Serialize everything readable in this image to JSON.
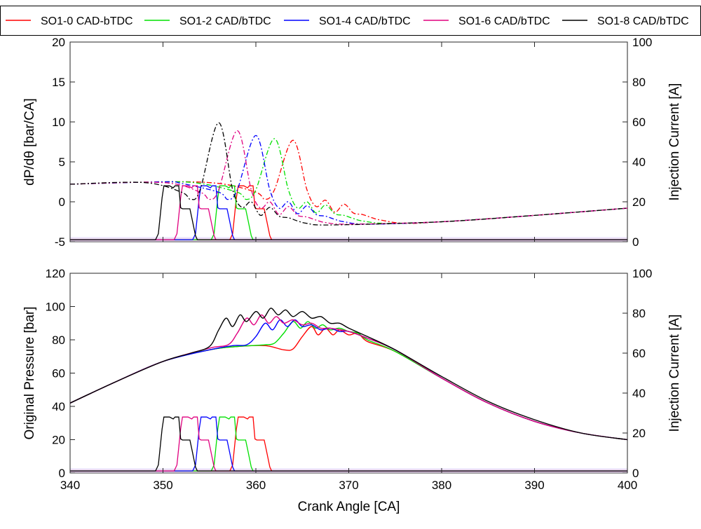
{
  "legend": {
    "items": [
      {
        "label": "SO1-0 CAD-bTDC",
        "color": "#ff0000"
      },
      {
        "label": "SO1-2 CAD/bTDC",
        "color": "#00e000"
      },
      {
        "label": "SO1-4 CAD/bTDC",
        "color": "#0000ff"
      },
      {
        "label": "SO1-6 CAD/bTDC",
        "color": "#e0007f"
      },
      {
        "label": "SO1-8 CAD/bTDC",
        "color": "#000000"
      }
    ]
  },
  "chart_data": [
    {
      "type": "line",
      "ylabel": "dP/dθ [bar/CA]",
      "y2label": "Injection Current [A]",
      "xlim": [
        340,
        400
      ],
      "ylim": [
        -5,
        20
      ],
      "y2lim": [
        0,
        100
      ],
      "x_ticks": [
        340,
        350,
        360,
        370,
        380,
        390,
        400
      ],
      "y_ticks": [
        -5,
        0,
        5,
        10,
        15,
        20
      ],
      "y2_ticks": [
        0,
        20,
        40,
        60,
        80,
        100
      ],
      "grid": false,
      "series": [
        {
          "name": "SO1-0 CAD-bTDC",
          "color": "#ff0000",
          "injection_start": 357.5,
          "injection_end": 361.5,
          "rate_points": [
            [
              340,
              2.2
            ],
            [
              350,
              2.5
            ],
            [
              356,
              2.3
            ],
            [
              360,
              1.2
            ],
            [
              361,
              0.3
            ],
            [
              362,
              1.5
            ],
            [
              364,
              7.7
            ],
            [
              365.5,
              1.5
            ],
            [
              366.5,
              -0.6
            ],
            [
              367.5,
              0.2
            ],
            [
              368.5,
              -1.3
            ],
            [
              369.5,
              -0.3
            ],
            [
              370.5,
              -1.4
            ],
            [
              371.5,
              -1.6
            ],
            [
              372.5,
              -2.0
            ],
            [
              373.5,
              -2.3
            ],
            [
              376,
              -2.7
            ],
            [
              380,
              -2.5
            ],
            [
              390,
              -1.7
            ],
            [
              400,
              -0.8
            ]
          ]
        },
        {
          "name": "SO1-2 CAD/bTDC",
          "color": "#00e000",
          "injection_start": 355.5,
          "injection_end": 359.5,
          "rate_points": [
            [
              340,
              2.2
            ],
            [
              350,
              2.5
            ],
            [
              354,
              2.3
            ],
            [
              358,
              1.2
            ],
            [
              359,
              0.3
            ],
            [
              360,
              1.5
            ],
            [
              362,
              7.9
            ],
            [
              363.5,
              1.5
            ],
            [
              364.5,
              -0.8
            ],
            [
              365.5,
              0.0
            ],
            [
              366.5,
              -1.4
            ],
            [
              367.5,
              -0.4
            ],
            [
              368.5,
              -1.5
            ],
            [
              369.5,
              -1.7
            ],
            [
              370.5,
              -2.1
            ],
            [
              371.5,
              -2.4
            ],
            [
              374,
              -2.7
            ],
            [
              380,
              -2.5
            ],
            [
              390,
              -1.7
            ],
            [
              400,
              -0.8
            ]
          ]
        },
        {
          "name": "SO1-4 CAD/bTDC",
          "color": "#0000ff",
          "injection_start": 353.5,
          "injection_end": 357.5,
          "rate_points": [
            [
              340,
              2.2
            ],
            [
              350,
              2.5
            ],
            [
              352,
              2.3
            ],
            [
              356,
              1.2
            ],
            [
              357,
              0.3
            ],
            [
              358,
              1.5
            ],
            [
              360,
              8.3
            ],
            [
              361.5,
              1.5
            ],
            [
              362.5,
              -0.8
            ],
            [
              363.5,
              0.0
            ],
            [
              364.5,
              -1.5
            ],
            [
              365.5,
              -0.5
            ],
            [
              366.5,
              -1.6
            ],
            [
              367.5,
              -1.8
            ],
            [
              368.5,
              -2.2
            ],
            [
              369.5,
              -2.5
            ],
            [
              372,
              -2.8
            ],
            [
              380,
              -2.5
            ],
            [
              390,
              -1.7
            ],
            [
              400,
              -0.8
            ]
          ]
        },
        {
          "name": "SO1-6 CAD/bTDC",
          "color": "#e0007f",
          "injection_start": 351.5,
          "injection_end": 355.5,
          "rate_points": [
            [
              340,
              2.2
            ],
            [
              350,
              2.4
            ],
            [
              354,
              1.2
            ],
            [
              355,
              0.3
            ],
            [
              356,
              1.5
            ],
            [
              358,
              8.9
            ],
            [
              359.5,
              1.5
            ],
            [
              360.5,
              -0.8
            ],
            [
              361.5,
              0.0
            ],
            [
              362.5,
              -1.6
            ],
            [
              363.5,
              -0.6
            ],
            [
              364.5,
              -1.7
            ],
            [
              365.5,
              -1.9
            ],
            [
              366.5,
              -2.3
            ],
            [
              367.5,
              -2.6
            ],
            [
              370,
              -2.8
            ],
            [
              380,
              -2.5
            ],
            [
              390,
              -1.7
            ],
            [
              400,
              -0.8
            ]
          ]
        },
        {
          "name": "SO1-8 CAD/bTDC",
          "color": "#000000",
          "injection_start": 349.5,
          "injection_end": 353.5,
          "rate_points": [
            [
              340,
              2.2
            ],
            [
              348,
              2.4
            ],
            [
              352,
              1.2
            ],
            [
              353,
              0.3
            ],
            [
              354,
              1.5
            ],
            [
              356,
              9.9
            ],
            [
              357.5,
              1.5
            ],
            [
              358.5,
              -0.7
            ],
            [
              359.5,
              0.0
            ],
            [
              360.5,
              -1.7
            ],
            [
              361.5,
              -0.7
            ],
            [
              362.5,
              -1.8
            ],
            [
              363.5,
              -2.0
            ],
            [
              364.5,
              -2.4
            ],
            [
              365.5,
              -2.7
            ],
            [
              368,
              -2.9
            ],
            [
              380,
              -2.5
            ],
            [
              390,
              -1.7
            ],
            [
              400,
              -0.8
            ]
          ]
        }
      ]
    },
    {
      "type": "line",
      "xlabel": "Crank Angle [CA]",
      "ylabel": "Original Pressure [bar]",
      "y2label": "Injection Current [A]",
      "xlim": [
        340,
        400
      ],
      "ylim": [
        0,
        120
      ],
      "y2lim": [
        0,
        100
      ],
      "x_ticks": [
        340,
        350,
        360,
        370,
        380,
        390,
        400
      ],
      "y_ticks": [
        0,
        20,
        40,
        60,
        80,
        100,
        120
      ],
      "y2_ticks": [
        0,
        20,
        40,
        60,
        80,
        100
      ],
      "grid": false,
      "series": [
        {
          "name": "SO1-0 CAD-bTDC",
          "color": "#ff0000",
          "injection_start": 357.5,
          "injection_end": 361.5,
          "pressure_points": [
            [
              340,
              42
            ],
            [
              345,
              55
            ],
            [
              350,
              67
            ],
            [
              355,
              74
            ],
            [
              358,
              76
            ],
            [
              361,
              76.5
            ],
            [
              363,
              74
            ],
            [
              364,
              74.5
            ],
            [
              365,
              82
            ],
            [
              366,
              88
            ],
            [
              366.7,
              83
            ],
            [
              367.5,
              87
            ],
            [
              368.3,
              83
            ],
            [
              369,
              86
            ],
            [
              370,
              83
            ],
            [
              371,
              84
            ],
            [
              372,
              79
            ],
            [
              375,
              73
            ],
            [
              380,
              57
            ],
            [
              385,
              42
            ],
            [
              390,
              31
            ],
            [
              395,
              24
            ],
            [
              400,
              20
            ]
          ]
        },
        {
          "name": "SO1-2 CAD/bTDC",
          "color": "#00e000",
          "injection_start": 355.5,
          "injection_end": 359.5,
          "pressure_points": [
            [
              340,
              42
            ],
            [
              345,
              55
            ],
            [
              350,
              67
            ],
            [
              355,
              74
            ],
            [
              358,
              76
            ],
            [
              359.5,
              76.5
            ],
            [
              361,
              77
            ],
            [
              362,
              78
            ],
            [
              363,
              84
            ],
            [
              364,
              91
            ],
            [
              364.8,
              87
            ],
            [
              365.6,
              91
            ],
            [
              366.4,
              87
            ],
            [
              367.2,
              89
            ],
            [
              368,
              86
            ],
            [
              369,
              87
            ],
            [
              370,
              85
            ],
            [
              371,
              84
            ],
            [
              372,
              80
            ],
            [
              375,
              73
            ],
            [
              380,
              57
            ],
            [
              385,
              42
            ],
            [
              390,
              31
            ],
            [
              395,
              24
            ],
            [
              400,
              20
            ]
          ]
        },
        {
          "name": "SO1-4 CAD/bTDC",
          "color": "#0000ff",
          "injection_start": 353.5,
          "injection_end": 357.5,
          "pressure_points": [
            [
              340,
              42
            ],
            [
              345,
              55
            ],
            [
              350,
              67
            ],
            [
              355,
              74
            ],
            [
              357.5,
              76.5
            ],
            [
              359,
              77
            ],
            [
              360,
              82
            ],
            [
              361,
              90
            ],
            [
              361.8,
              86
            ],
            [
              362.6,
              92
            ],
            [
              363.4,
              88
            ],
            [
              364.2,
              92
            ],
            [
              365,
              88
            ],
            [
              366,
              89
            ],
            [
              367,
              86
            ],
            [
              368,
              87
            ],
            [
              369,
              85
            ],
            [
              370,
              85
            ],
            [
              372,
              81
            ],
            [
              375,
              74
            ],
            [
              380,
              57
            ],
            [
              385,
              42
            ],
            [
              390,
              31
            ],
            [
              395,
              24
            ],
            [
              400,
              20
            ]
          ]
        },
        {
          "name": "SO1-6 CAD/bTDC",
          "color": "#e0007f",
          "injection_start": 351.5,
          "injection_end": 355.5,
          "pressure_points": [
            [
              340,
              42
            ],
            [
              345,
              55
            ],
            [
              350,
              67
            ],
            [
              355,
              75
            ],
            [
              357,
              77
            ],
            [
              358,
              84
            ],
            [
              359,
              93
            ],
            [
              359.8,
              89
            ],
            [
              360.6,
              95
            ],
            [
              361.4,
              90
            ],
            [
              362.2,
              94
            ],
            [
              363,
              90
            ],
            [
              364,
              92
            ],
            [
              365,
              89
            ],
            [
              366,
              90
            ],
            [
              367,
              87
            ],
            [
              368,
              87
            ],
            [
              370,
              85
            ],
            [
              372,
              81
            ],
            [
              375,
              74
            ],
            [
              380,
              57
            ],
            [
              385,
              42
            ],
            [
              390,
              31
            ],
            [
              395,
              24
            ],
            [
              400,
              20
            ]
          ]
        },
        {
          "name": "SO1-8 CAD/bTDC",
          "color": "#000000",
          "injection_start": 349.5,
          "injection_end": 353.5,
          "pressure_points": [
            [
              340,
              42
            ],
            [
              345,
              55
            ],
            [
              350,
              67
            ],
            [
              353,
              72
            ],
            [
              355,
              76
            ],
            [
              356,
              86
            ],
            [
              356.8,
              93
            ],
            [
              357.5,
              88
            ],
            [
              358.3,
              95
            ],
            [
              359,
              91
            ],
            [
              360,
              97
            ],
            [
              360.8,
              93
            ],
            [
              361.6,
              99
            ],
            [
              362.4,
              95
            ],
            [
              363.2,
              98
            ],
            [
              364,
              94
            ],
            [
              365,
              97
            ],
            [
              366,
              93
            ],
            [
              367,
              94
            ],
            [
              368,
              90
            ],
            [
              369,
              90
            ],
            [
              370,
              87
            ],
            [
              372,
              82
            ],
            [
              375,
              74
            ],
            [
              380,
              58
            ],
            [
              385,
              43
            ],
            [
              390,
              32
            ],
            [
              395,
              24
            ],
            [
              400,
              20
            ]
          ]
        }
      ]
    }
  ]
}
